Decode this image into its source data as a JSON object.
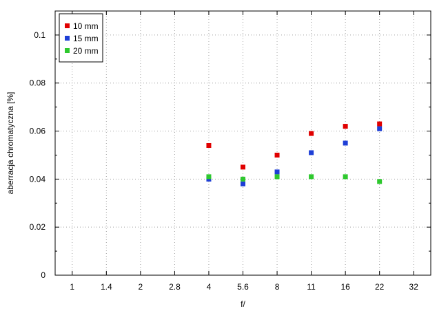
{
  "chart_data": {
    "type": "scatter",
    "xlabel": "f/",
    "ylabel": "aberracja chromatyczna [%]",
    "x_ticks": [
      "1",
      "1.4",
      "2",
      "2.8",
      "4",
      "5.6",
      "8",
      "11",
      "16",
      "22",
      "32"
    ],
    "y_ticks": [
      "0",
      "0.02",
      "0.04",
      "0.06",
      "0.08",
      "0.1"
    ],
    "ylim": [
      0,
      0.11
    ],
    "grid": true,
    "legend_position": "top-left",
    "series": [
      {
        "name": "10 mm",
        "color": "#e00000",
        "x": [
          "4",
          "5.6",
          "8",
          "11",
          "16",
          "22"
        ],
        "values": [
          0.054,
          0.045,
          0.05,
          0.059,
          0.062,
          0.063
        ]
      },
      {
        "name": "15 mm",
        "color": "#1e3fd6",
        "x": [
          "4",
          "5.6",
          "8",
          "11",
          "16",
          "22"
        ],
        "values": [
          0.04,
          0.038,
          0.043,
          0.051,
          0.055,
          0.061
        ]
      },
      {
        "name": "20 mm",
        "color": "#2ec82e",
        "x": [
          "4",
          "5.6",
          "8",
          "11",
          "16",
          "22"
        ],
        "values": [
          0.041,
          0.04,
          0.041,
          0.041,
          0.041,
          0.039
        ]
      }
    ]
  }
}
